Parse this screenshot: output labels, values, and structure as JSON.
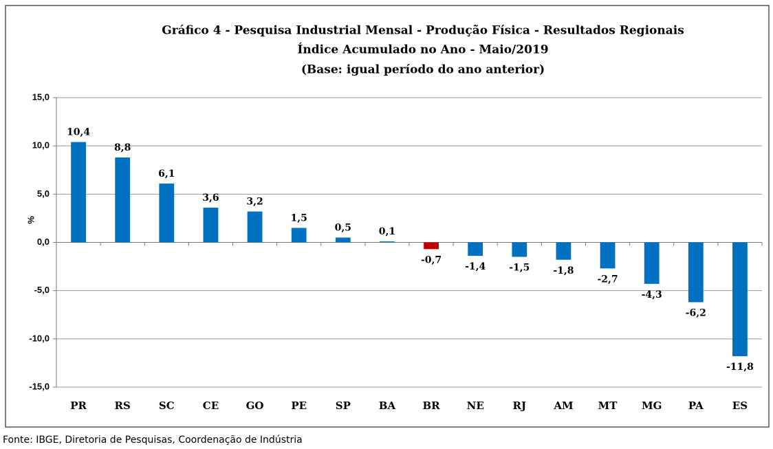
{
  "chart_data": {
    "type": "bar",
    "title": [
      "Gráfico 4 - Pesquisa Industrial Mensal - Produção Física - Resultados Regionais",
      "Índice Acumulado no Ano - Maio/2019",
      "(Base: igual período do ano anterior)"
    ],
    "y_label": "%",
    "source": "Fonte: IBGE, Diretoria de Pesquisas, Coordenação de Indústria",
    "categories": [
      "PR",
      "RS",
      "SC",
      "CE",
      "GO",
      "PE",
      "SP",
      "BA",
      "BR",
      "NE",
      "RJ",
      "AM",
      "MT",
      "MG",
      "PA",
      "ES"
    ],
    "values": [
      10.4,
      8.8,
      6.1,
      3.6,
      3.2,
      1.5,
      0.5,
      0.1,
      -0.7,
      -1.4,
      -1.5,
      -1.8,
      -2.7,
      -4.3,
      -6.2,
      -11.8
    ],
    "value_labels": [
      "10,4",
      "8,8",
      "6,1",
      "3,6",
      "3,2",
      "1,5",
      "0,5",
      "0,1",
      "-0,7",
      "-1,4",
      "-1,5",
      "-1,8",
      "-2,7",
      "-4,3",
      "-6,2",
      "-11,8"
    ],
    "colors": [
      "#0070c0",
      "#0070c0",
      "#0070c0",
      "#0070c0",
      "#0070c0",
      "#0070c0",
      "#0070c0",
      "#0070c0",
      "#c00000",
      "#0070c0",
      "#0070c0",
      "#0070c0",
      "#0070c0",
      "#0070c0",
      "#0070c0",
      "#0070c0"
    ],
    "ylim": [
      -15,
      15
    ],
    "yticks": [
      {
        "value": -15,
        "label": "-15,0"
      },
      {
        "value": -10,
        "label": "-10,0"
      },
      {
        "value": -5,
        "label": "-5,0"
      },
      {
        "value": 0,
        "label": "0,0"
      },
      {
        "value": 5,
        "label": "5,0"
      },
      {
        "value": 10,
        "label": "10,0"
      },
      {
        "value": 15,
        "label": "15,0"
      }
    ],
    "grid": true
  }
}
